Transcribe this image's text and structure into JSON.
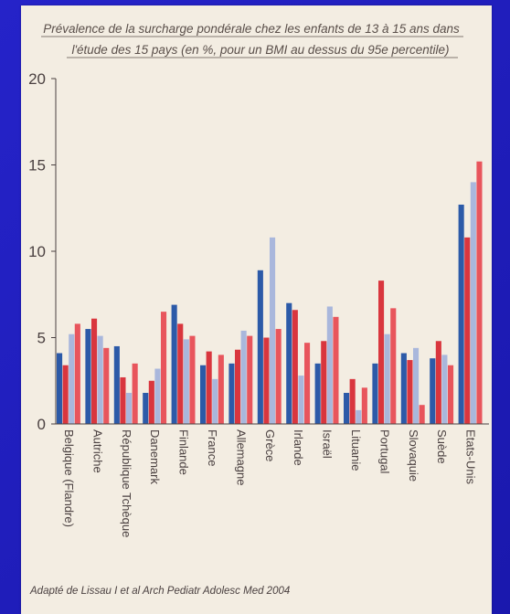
{
  "chart_data": {
    "type": "bar",
    "title_lines": [
      "Prévalence de la surcharge pondérale chez les enfants de 13 à 15 ans dans",
      "l'étude des 15 pays (en %, pour un BMI au dessus du 95e percentile)"
    ],
    "categories": [
      "Belgique (Flandre)",
      "Autriche",
      "République Tchèque",
      "Danemark",
      "Finlande",
      "France",
      "Allemagne",
      "Grèce",
      "Irlande",
      "Israël",
      "Lituanie",
      "Portugal",
      "Slovaquie",
      "Suède",
      "Etats-Unis"
    ],
    "series": [
      {
        "values": [
          4.1,
          5.5,
          4.5,
          1.8,
          6.9,
          3.4,
          3.5,
          8.9,
          7.0,
          3.5,
          1.8,
          3.5,
          4.1,
          3.8,
          12.7
        ]
      },
      {
        "values": [
          3.4,
          6.1,
          2.7,
          2.5,
          5.8,
          4.2,
          4.3,
          5.0,
          6.6,
          4.8,
          2.6,
          8.3,
          3.7,
          4.8,
          10.8
        ]
      },
      {
        "values": [
          5.2,
          5.1,
          1.8,
          3.2,
          4.9,
          2.6,
          5.4,
          10.8,
          2.8,
          6.8,
          0.8,
          5.2,
          4.4,
          4.0,
          14.0
        ]
      },
      {
        "values": [
          5.8,
          4.4,
          3.5,
          6.5,
          5.1,
          4.0,
          5.1,
          5.5,
          4.7,
          6.2,
          2.1,
          6.7,
          1.1,
          3.4,
          15.2
        ]
      }
    ],
    "colors": [
      "#2c5aa8",
      "#d9363e",
      "#a9b7dc",
      "#e8555c"
    ],
    "yticks": [
      0,
      5,
      10,
      15,
      20
    ],
    "ylim": [
      0,
      20
    ],
    "source": "Adapté de Lissau I et al Arch Pediatr Adolesc Med 2004"
  }
}
